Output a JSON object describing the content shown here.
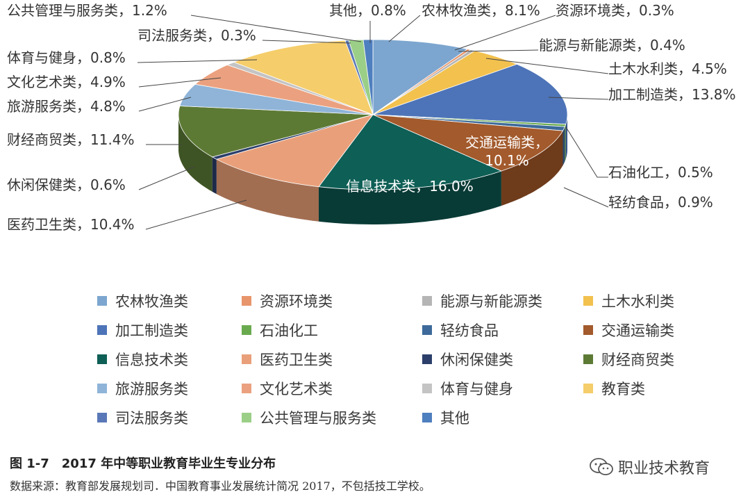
{
  "chart_data": {
    "type": "pie",
    "slices": [
      {
        "label": "农林牧渔类",
        "value": 8.1,
        "label_text": "农林牧渔类，8.1%",
        "color": "#7ca6cf",
        "side": "#5c7f9f"
      },
      {
        "label": "资源环境类",
        "value": 0.3,
        "label_text": "资源环境类，0.3%",
        "color": "#e8956b",
        "side": "#b06f4e"
      },
      {
        "label": "能源与新能源类",
        "value": 0.4,
        "label_text": "能源与新能源类，0.4%",
        "color": "#b5b5b5",
        "side": "#8a8a8a"
      },
      {
        "label": "土木水利类",
        "value": 4.5,
        "label_text": "土木水利类，4.5%",
        "color": "#f2c14e",
        "side": "#b8903a"
      },
      {
        "label": "加工制造类",
        "value": 13.8,
        "label_text": "加工制造类，13.8%",
        "color": "#4d74b8",
        "side": "#36538a"
      },
      {
        "label": "石油化工",
        "value": 0.5,
        "label_text": "石油化工，0.5%",
        "color": "#6aaa4f",
        "side": "#4d7d38"
      },
      {
        "label": "轻纺食品",
        "value": 0.9,
        "label_text": "轻纺食品，0.9%",
        "color": "#3d6a9a",
        "side": "#2a4a6d"
      },
      {
        "label": "交通运输类",
        "value": 10.1,
        "label_text": "交通运输类，\n10.1%",
        "color": "#a35a2c",
        "side": "#6e3b1b"
      },
      {
        "label": "信息技术类",
        "value": 16.0,
        "label_text": "信息技术类，16.0%",
        "color": "#0e5f56",
        "side": "#093b36"
      },
      {
        "label": "医药卫生类",
        "value": 10.4,
        "label_text": "医药卫生类，10.4%",
        "color": "#e9a07a",
        "side": "#a26e52"
      },
      {
        "label": "休闲保健类",
        "value": 0.6,
        "label_text": "休闲保健类，0.6%",
        "color": "#2c3f6b",
        "side": "#1d2a48"
      },
      {
        "label": "财经商贸类",
        "value": 11.4,
        "label_text": "财经商贸类，11.4%",
        "color": "#5d7a35",
        "side": "#3f5424"
      },
      {
        "label": "旅游服务类",
        "value": 4.8,
        "label_text": "旅游服务类，4.8%",
        "color": "#8fb4d8",
        "side": "#64819c"
      },
      {
        "label": "文化艺术类",
        "value": 4.9,
        "label_text": "文化艺术类，4.9%",
        "color": "#eba17f",
        "side": "#a8715a"
      },
      {
        "label": "体育与健身",
        "value": 0.8,
        "label_text": "体育与健身，0.8%",
        "color": "#c4c4c4",
        "side": "#8f8f8f"
      },
      {
        "label": "教育类",
        "value": 10.4,
        "label_text": "",
        "color": "#f5cd6a",
        "side": "#b3964d"
      },
      {
        "label": "司法服务类",
        "value": 0.3,
        "label_text": "司法服务类，0.3%",
        "color": "#5a78b8",
        "side": "#3f5585"
      },
      {
        "label": "公共管理与服务类",
        "value": 1.2,
        "label_text": "公共管理与服务类，1.2%",
        "color": "#9bcf87",
        "side": "#6f9861"
      },
      {
        "label": "其他",
        "value": 0.8,
        "label_text": "其他，0.8%",
        "color": "#4e7fbf",
        "side": "#375a88"
      }
    ],
    "legend_position": "bottom",
    "title": "图 1-7　2017 年中等职业教育毕业生专业分布"
  },
  "caption": {
    "title": "图 1-7　2017 年中等职业教育毕业生专业分布",
    "source": "数据来源：教育部发展规划司．中国教育事业发展统计简况 2017，不包括技工学校。"
  },
  "watermark": {
    "text": "职业技术教育",
    "icon": "wechat-icon"
  }
}
